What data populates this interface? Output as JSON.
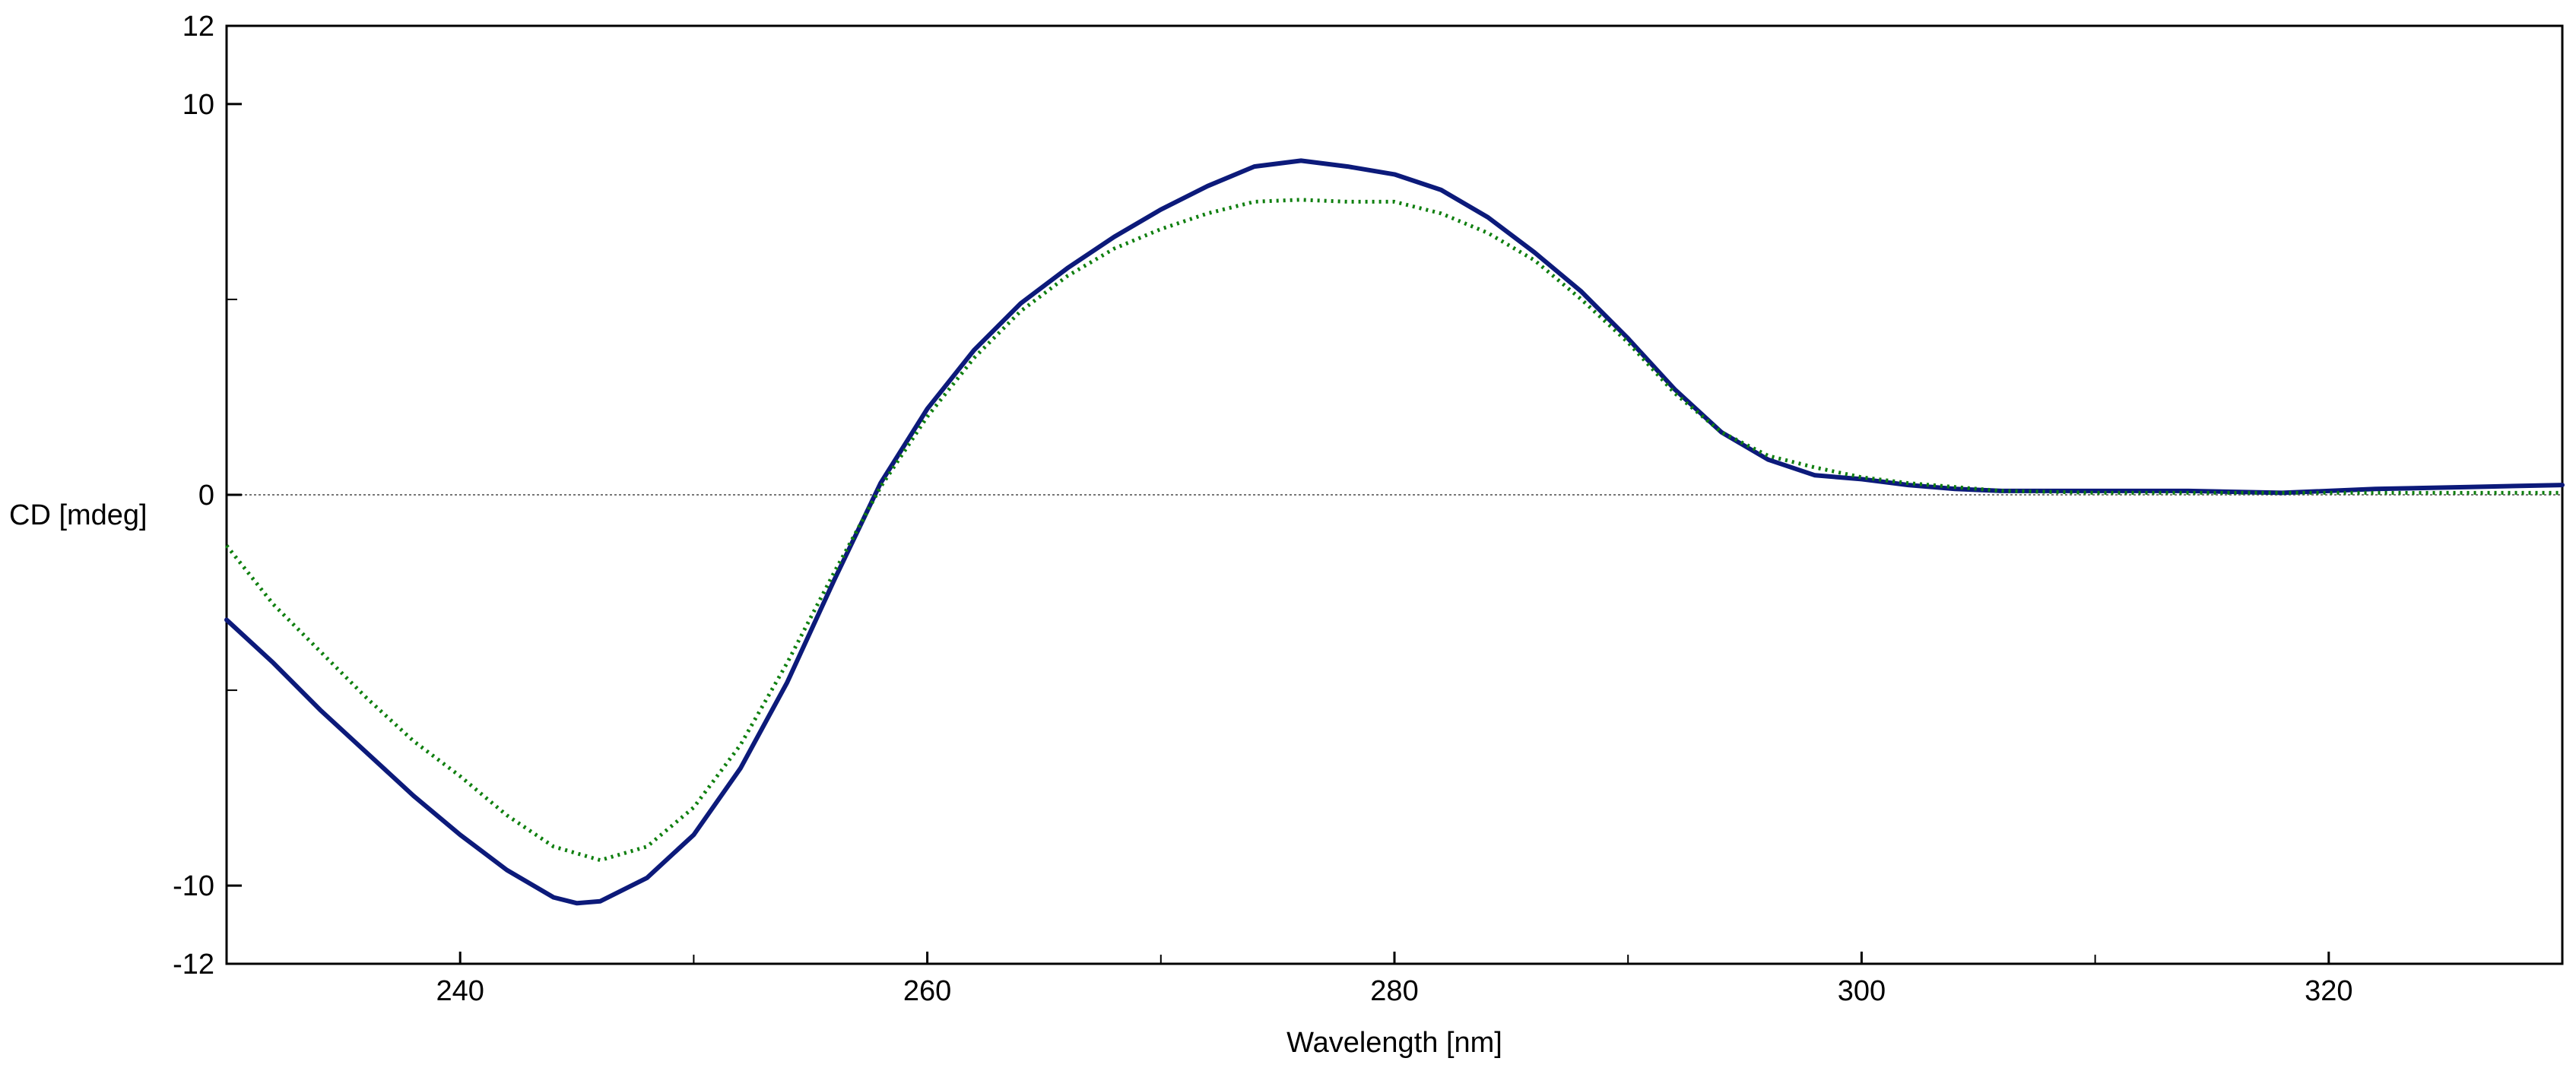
{
  "chart_data": {
    "type": "line",
    "title": "",
    "xlabel": "Wavelength [nm]",
    "ylabel": "CD [mdeg]",
    "xlim": [
      230,
      330
    ],
    "ylim": [
      -12,
      12
    ],
    "x_ticks": [
      240,
      260,
      280,
      300,
      320
    ],
    "x_minor_ticks": [
      250,
      270,
      290,
      310
    ],
    "y_ticks": [
      12,
      10,
      0,
      -10,
      -12
    ],
    "y_minor_ticks": [
      5,
      -5
    ],
    "zero_line": true,
    "grid": false,
    "legend": false,
    "series": [
      {
        "color": "#0c1a7a",
        "style": "solid",
        "points": [
          [
            230,
            -3.2
          ],
          [
            232,
            -4.3
          ],
          [
            234,
            -5.5
          ],
          [
            236,
            -6.6
          ],
          [
            238,
            -7.7
          ],
          [
            240,
            -8.7
          ],
          [
            242,
            -9.6
          ],
          [
            244,
            -10.3
          ],
          [
            245,
            -10.45
          ],
          [
            246,
            -10.4
          ],
          [
            248,
            -9.8
          ],
          [
            250,
            -8.7
          ],
          [
            252,
            -7.0
          ],
          [
            254,
            -4.8
          ],
          [
            256,
            -2.2
          ],
          [
            258,
            0.3
          ],
          [
            260,
            2.2
          ],
          [
            262,
            3.7
          ],
          [
            264,
            4.9
          ],
          [
            266,
            5.8
          ],
          [
            268,
            6.6
          ],
          [
            270,
            7.3
          ],
          [
            272,
            7.9
          ],
          [
            274,
            8.4
          ],
          [
            276,
            8.55
          ],
          [
            278,
            8.4
          ],
          [
            280,
            8.2
          ],
          [
            282,
            7.8
          ],
          [
            284,
            7.1
          ],
          [
            286,
            6.2
          ],
          [
            288,
            5.2
          ],
          [
            290,
            4.0
          ],
          [
            292,
            2.7
          ],
          [
            294,
            1.6
          ],
          [
            296,
            0.9
          ],
          [
            298,
            0.5
          ],
          [
            300,
            0.4
          ],
          [
            302,
            0.25
          ],
          [
            304,
            0.15
          ],
          [
            306,
            0.1
          ],
          [
            310,
            0.1
          ],
          [
            314,
            0.1
          ],
          [
            318,
            0.05
          ],
          [
            322,
            0.15
          ],
          [
            326,
            0.2
          ],
          [
            330,
            0.25
          ]
        ]
      },
      {
        "color": "#0f7f0f",
        "style": "dotted",
        "points": [
          [
            230,
            -1.3
          ],
          [
            232,
            -2.8
          ],
          [
            234,
            -4.0
          ],
          [
            236,
            -5.2
          ],
          [
            238,
            -6.3
          ],
          [
            240,
            -7.2
          ],
          [
            242,
            -8.2
          ],
          [
            244,
            -9.0
          ],
          [
            246,
            -9.35
          ],
          [
            248,
            -9.0
          ],
          [
            250,
            -8.0
          ],
          [
            252,
            -6.4
          ],
          [
            254,
            -4.3
          ],
          [
            256,
            -2.0
          ],
          [
            258,
            0.2
          ],
          [
            260,
            2.0
          ],
          [
            262,
            3.5
          ],
          [
            264,
            4.7
          ],
          [
            266,
            5.6
          ],
          [
            268,
            6.3
          ],
          [
            270,
            6.8
          ],
          [
            272,
            7.2
          ],
          [
            274,
            7.5
          ],
          [
            276,
            7.55
          ],
          [
            278,
            7.5
          ],
          [
            280,
            7.5
          ],
          [
            282,
            7.2
          ],
          [
            284,
            6.7
          ],
          [
            286,
            6.0
          ],
          [
            288,
            5.0
          ],
          [
            290,
            3.9
          ],
          [
            292,
            2.6
          ],
          [
            294,
            1.6
          ],
          [
            296,
            1.0
          ],
          [
            298,
            0.7
          ],
          [
            300,
            0.45
          ],
          [
            302,
            0.3
          ],
          [
            304,
            0.2
          ],
          [
            306,
            0.1
          ],
          [
            310,
            0.05
          ],
          [
            314,
            0.05
          ],
          [
            318,
            0.05
          ],
          [
            322,
            0.05
          ],
          [
            326,
            0.05
          ],
          [
            330,
            0.05
          ]
        ]
      }
    ]
  }
}
